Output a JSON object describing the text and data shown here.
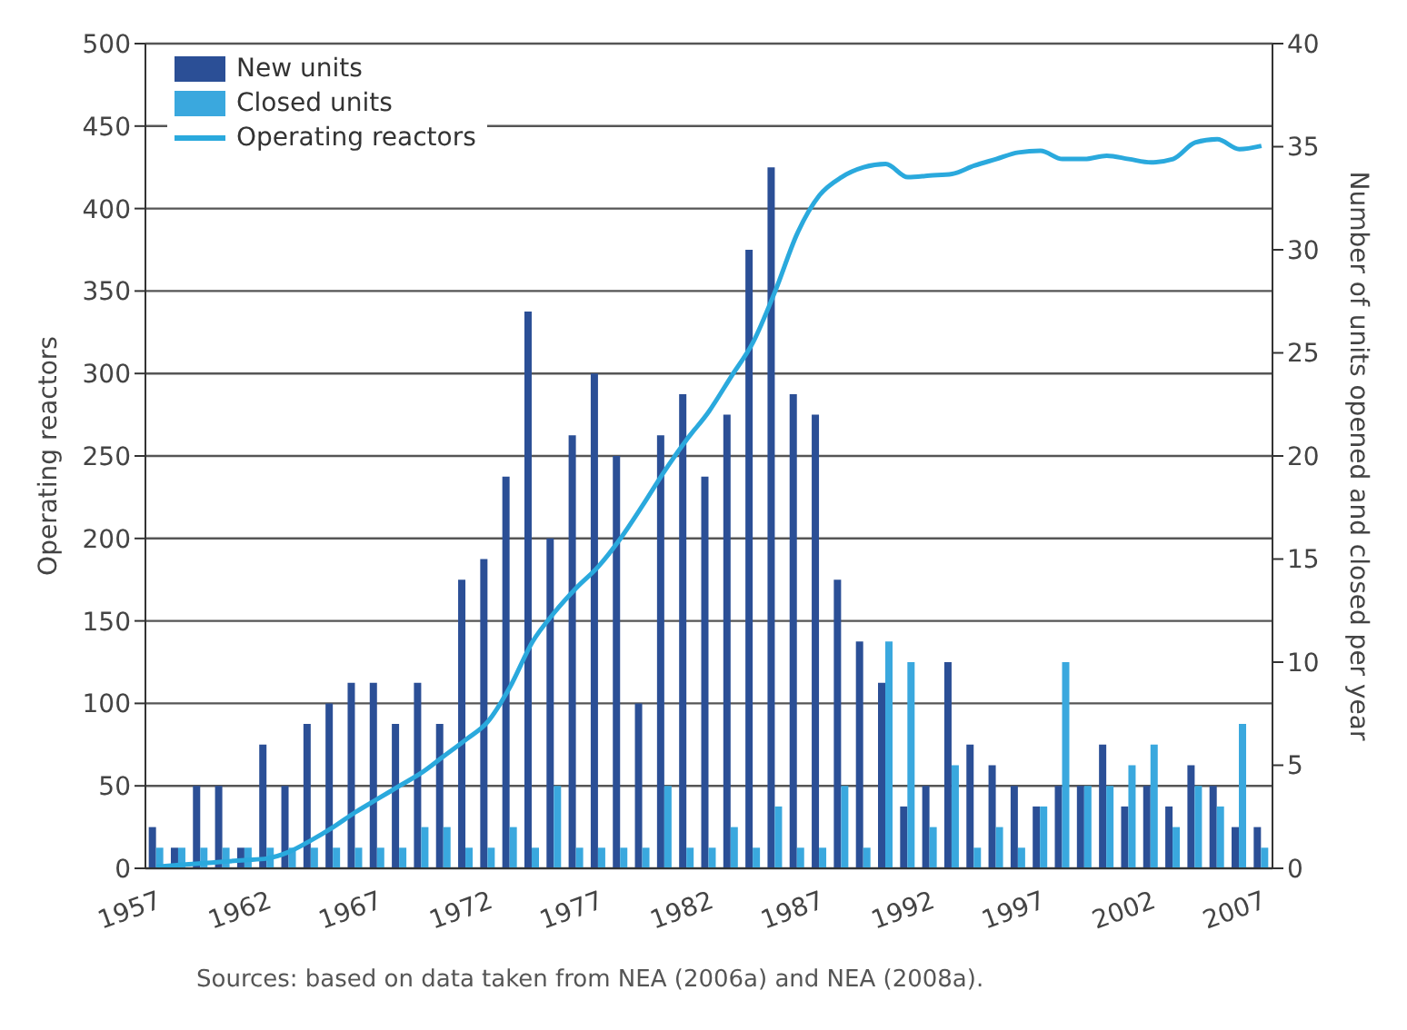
{
  "chart_data": {
    "type": "bar",
    "ylabel": "Operating reactors",
    "y2label": "Number of units opened and closed per year",
    "categories": [
      "1957",
      null,
      null,
      null,
      null,
      "1962",
      null,
      null,
      null,
      null,
      "1967",
      null,
      null,
      null,
      null,
      "1972",
      null,
      null,
      null,
      null,
      "1977",
      null,
      null,
      null,
      null,
      "1982",
      null,
      null,
      null,
      null,
      "1987",
      null,
      null,
      null,
      null,
      "1992",
      null,
      null,
      null,
      null,
      "1997",
      null,
      null,
      null,
      null,
      "2002",
      null,
      null,
      null,
      null,
      "2007"
    ],
    "series": [
      {
        "name": "New units",
        "axis": "y2",
        "color": "#2b4f96",
        "values": [
          2,
          1,
          4,
          4,
          1,
          6,
          4,
          7,
          8,
          9,
          9,
          7,
          9,
          7,
          14,
          15,
          19,
          27,
          16,
          21,
          24,
          20,
          8,
          21,
          23,
          19,
          22,
          30,
          34,
          23,
          22,
          14,
          11,
          9,
          3,
          4,
          10,
          6,
          5,
          4,
          3,
          4,
          4,
          6,
          3,
          4,
          3,
          5,
          4,
          2,
          2
        ]
      },
      {
        "name": "Closed units",
        "axis": "y2",
        "color": "#3aa8de",
        "values": [
          1,
          1,
          1,
          1,
          1,
          1,
          1,
          1,
          1,
          1,
          1,
          1,
          2,
          2,
          1,
          1,
          2,
          1,
          4,
          1,
          1,
          1,
          1,
          4,
          1,
          1,
          2,
          1,
          3,
          1,
          1,
          4,
          1,
          11,
          10,
          2,
          5,
          1,
          2,
          1,
          3,
          10,
          4,
          4,
          5,
          6,
          2,
          4,
          3,
          7,
          1
        ]
      },
      {
        "name": "Operating reactors",
        "type": "line",
        "axis": "y",
        "color": "#2aa9dd",
        "values": [
          1,
          2,
          3,
          4,
          5,
          6,
          10,
          17,
          25,
          34,
          42,
          50,
          58,
          68,
          78,
          89,
          110,
          137,
          155,
          170,
          183,
          200,
          220,
          241,
          260,
          277,
          298,
          319,
          350,
          385,
          408,
          419,
          425,
          427,
          419,
          420,
          421,
          426,
          430,
          434,
          435,
          430,
          430,
          432,
          430,
          428,
          430,
          440,
          442,
          436,
          438
        ]
      }
    ],
    "ylim": [
      0,
      500
    ],
    "yticks": [
      0,
      50,
      100,
      150,
      200,
      250,
      300,
      350,
      400,
      450,
      500
    ],
    "y2lim": [
      0,
      40
    ],
    "y2ticks": [
      0,
      5,
      10,
      15,
      20,
      25,
      30,
      35,
      40
    ],
    "grid": "y",
    "legend": "top left",
    "marker": "none",
    "line_style": "solid",
    "annotations": [
      "Sources: based on data taken from NEA (2006a) and NEA (2008a)."
    ]
  }
}
